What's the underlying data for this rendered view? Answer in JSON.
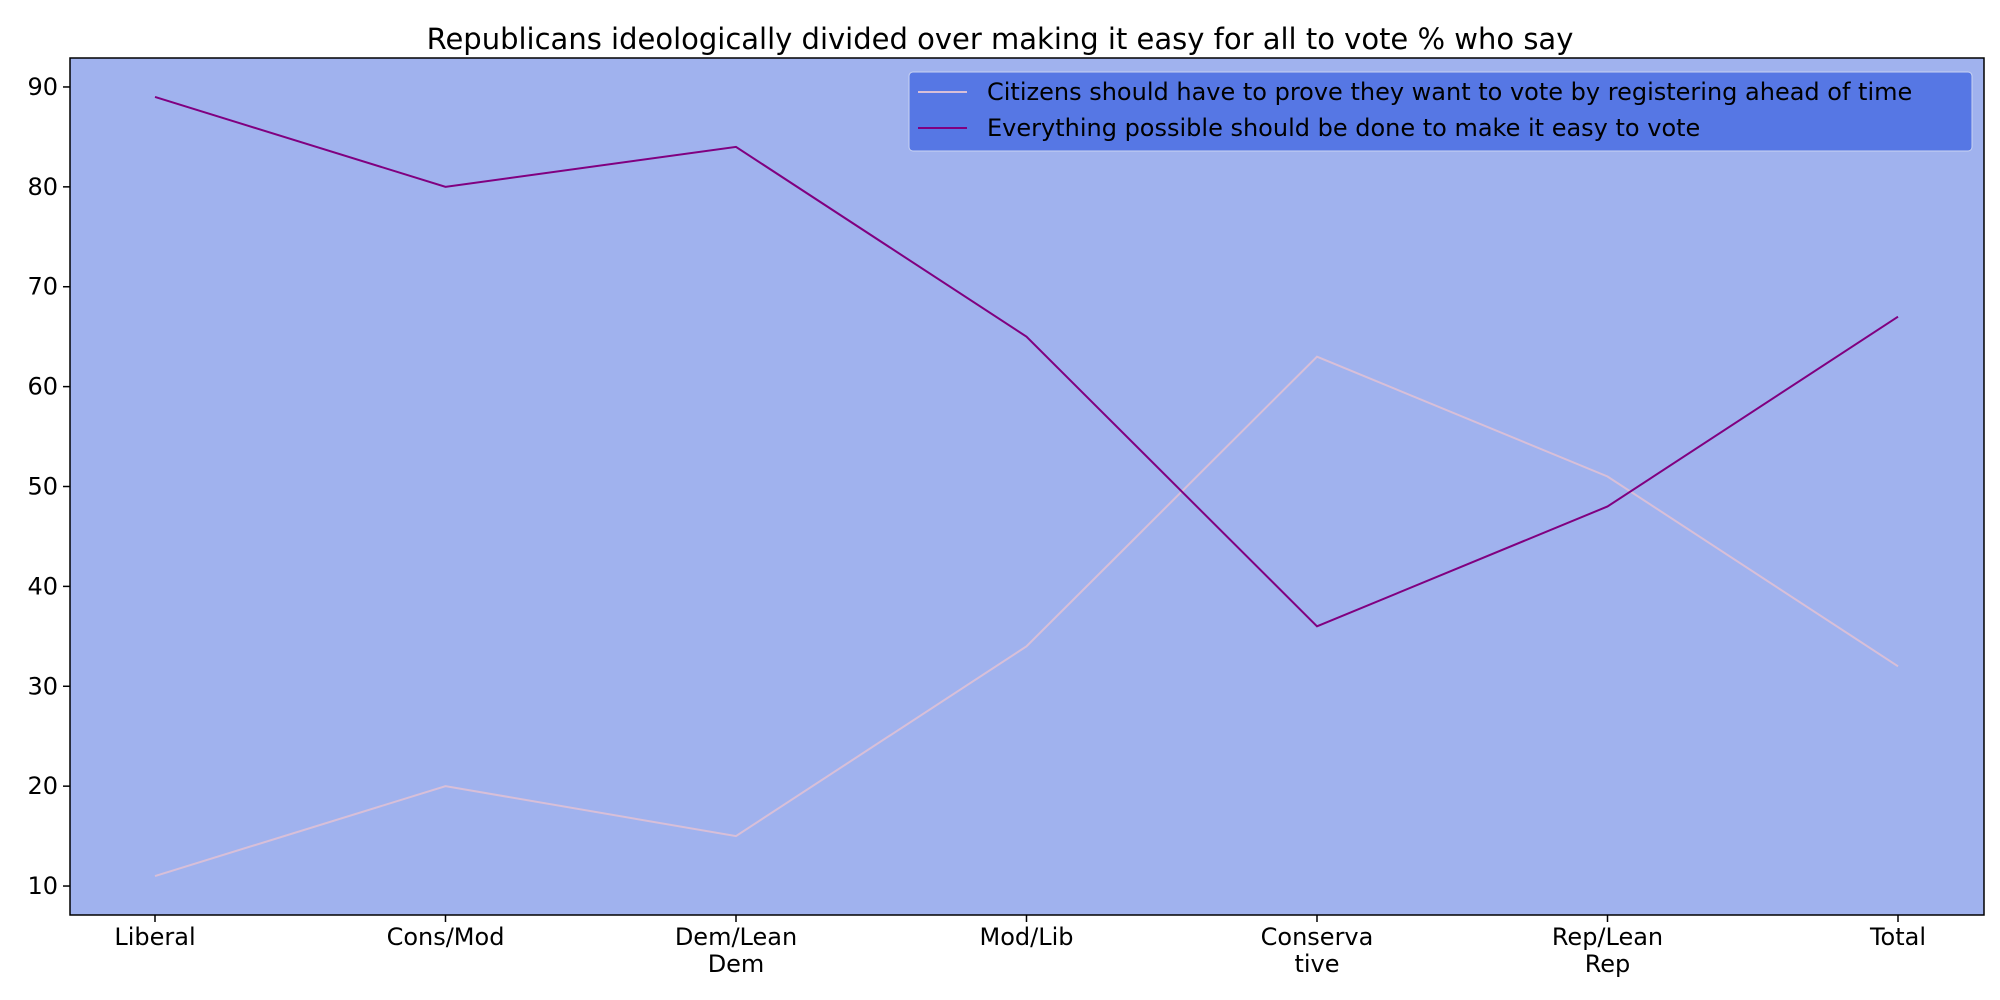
{
  "chart_data": {
    "type": "line",
    "title": "Republicans ideologically divided over making it easy for all to vote % who say",
    "xlabel": "",
    "ylabel": "",
    "categories": [
      "Liberal",
      "Cons/Mod",
      "Dem/Lean\nDem",
      "Mod/Lib",
      "Conserva\ntive",
      "Rep/Lean\nRep",
      "Total"
    ],
    "series": [
      {
        "name": "Citizens should have to prove they want to vote by registering ahead of time",
        "values": [
          11,
          20,
          15,
          34,
          63,
          51,
          32
        ],
        "color": "#d8bfd8"
      },
      {
        "name": "Everything possible should be done to make it easy to vote",
        "values": [
          89,
          80,
          84,
          65,
          36,
          48,
          67
        ],
        "color": "#800080"
      }
    ],
    "ylim": [
      7.1,
      92.9
    ],
    "yticks": [
      10,
      20,
      30,
      40,
      50,
      60,
      70,
      80,
      90
    ],
    "grid": false,
    "legend_position": "top-right",
    "colors": {
      "plot_background": "#a0b2ee",
      "legend_background": "#5677e4",
      "axis": "#000000"
    }
  }
}
